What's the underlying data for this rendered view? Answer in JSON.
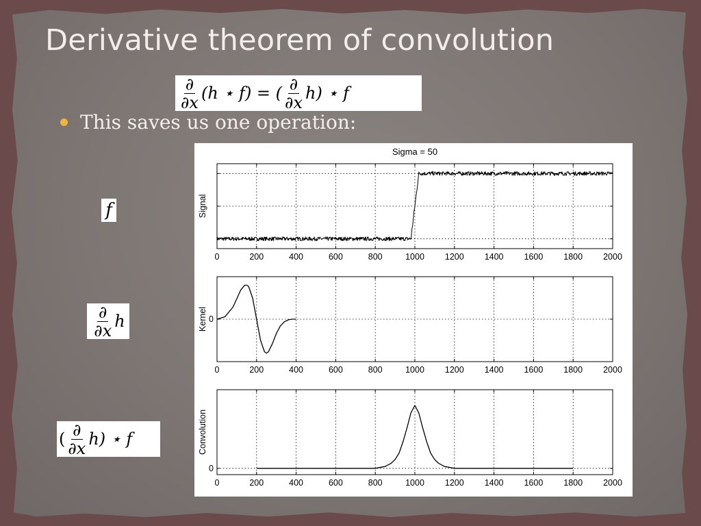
{
  "slide": {
    "title": "Derivative theorem of convolution",
    "bullet": "This saves us one operation:",
    "colors": {
      "bullet": "#f1b53f",
      "background": "#7d7673",
      "border": "#6b4a4c"
    }
  },
  "math": {
    "d": "∂",
    "dx": "∂x",
    "eq_lhs_rest": "(h ⋆ f) = (",
    "eq_rhs_h": "h",
    "eq_rhs_tail": ") ⋆ f",
    "f": "f",
    "h": "h",
    "open_paren": "(",
    "conv_tail": "h) ⋆ f"
  },
  "chart_data": [
    {
      "type": "line",
      "title": "Sigma = 50",
      "ylabel": "Signal",
      "xlim": [
        0,
        2000
      ],
      "xticks": [
        0,
        200,
        400,
        600,
        800,
        1000,
        1200,
        1400,
        1600,
        1800,
        2000
      ],
      "xtick_labels": [
        "0",
        "200",
        "400",
        "600",
        "800",
        "1000",
        "1200",
        "1400",
        "1600",
        "1800",
        "2000"
      ],
      "ylim": [
        -0.15,
        1.15
      ],
      "yticks": [
        0,
        0.5,
        1
      ],
      "ytick_labels": [],
      "grid": true,
      "series": [
        {
          "x": [
            0,
            980,
            1020,
            2000
          ],
          "y": [
            0,
            0,
            1,
            1
          ],
          "noise": true
        }
      ]
    },
    {
      "type": "line",
      "ylabel": "Kernel",
      "xlim": [
        0,
        2000
      ],
      "xticks": [
        0,
        200,
        400,
        600,
        800,
        1000,
        1200,
        1400,
        1600,
        1800,
        2000
      ],
      "xtick_labels": [
        "0",
        "200",
        "400",
        "600",
        "800",
        "1000",
        "1200",
        "1400",
        "1600",
        "1800",
        "2000"
      ],
      "ylim": [
        -1.25,
        1.25
      ],
      "yticks": [
        0
      ],
      "ytick_labels": [
        "0"
      ],
      "grid": true,
      "series": [
        {
          "x": [
            0,
            40,
            80,
            100,
            120,
            140,
            150,
            160,
            180,
            200,
            220,
            240,
            250,
            260,
            280,
            300,
            320,
            340,
            360,
            380,
            400
          ],
          "y": [
            0,
            0.07,
            0.35,
            0.6,
            0.86,
            1.0,
            1.0,
            0.96,
            0.62,
            0.0,
            -0.62,
            -0.96,
            -1.0,
            -0.96,
            -0.72,
            -0.42,
            -0.2,
            -0.08,
            -0.02,
            0.0,
            0.0
          ]
        }
      ]
    },
    {
      "type": "line",
      "ylabel": "Convolution",
      "xlim": [
        0,
        2000
      ],
      "xticks": [
        0,
        200,
        400,
        600,
        800,
        1000,
        1200,
        1400,
        1600,
        1800,
        2000
      ],
      "xtick_labels": [
        "0",
        "200",
        "400",
        "600",
        "800",
        "1000",
        "1200",
        "1400",
        "1600",
        "1800",
        "2000"
      ],
      "ylim": [
        -0.1,
        1.25
      ],
      "yticks": [
        0
      ],
      "ytick_labels": [
        "0"
      ],
      "grid": true,
      "series": [
        {
          "x": [
            200,
            750,
            800,
            850,
            880,
            900,
            920,
            940,
            960,
            980,
            1000,
            1020,
            1040,
            1060,
            1080,
            1100,
            1120,
            1150,
            1200,
            1250,
            1800
          ],
          "y": [
            0,
            0,
            0.0,
            0.03,
            0.08,
            0.14,
            0.24,
            0.42,
            0.64,
            0.88,
            1.0,
            0.88,
            0.64,
            0.42,
            0.24,
            0.14,
            0.08,
            0.03,
            0.0,
            0.0,
            0
          ]
        }
      ]
    }
  ]
}
